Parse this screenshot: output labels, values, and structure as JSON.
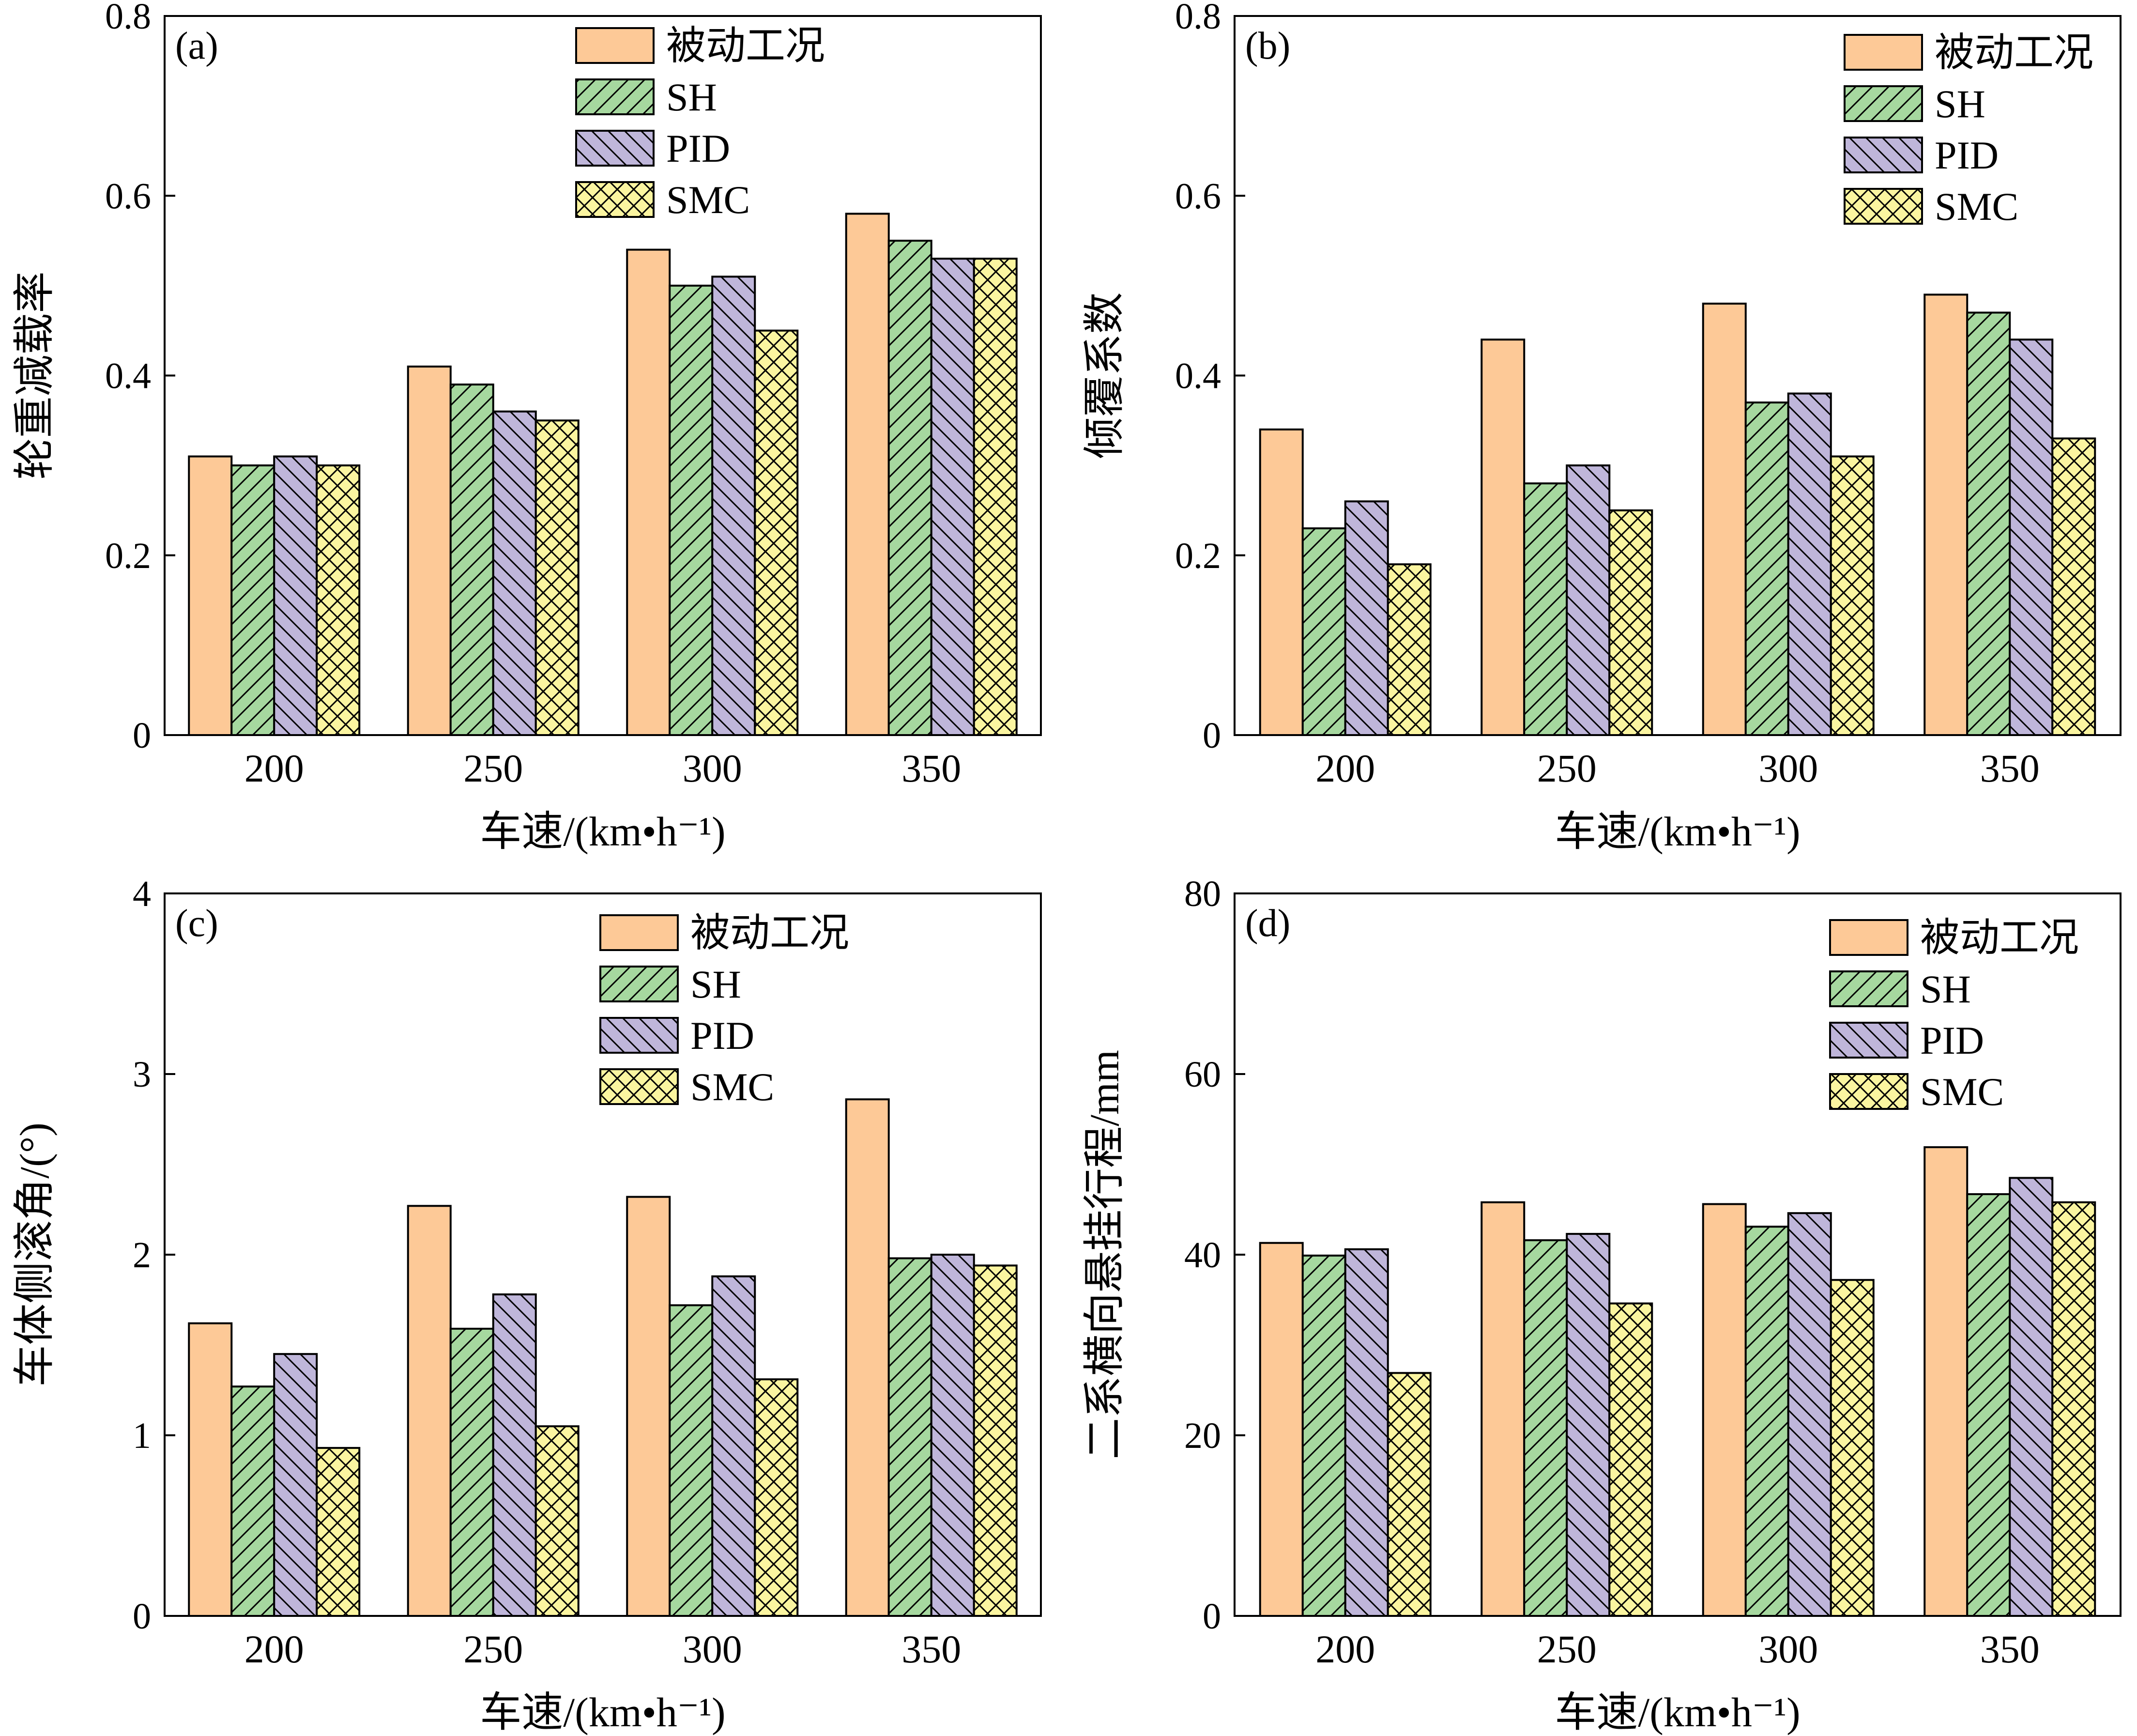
{
  "legend_labels": [
    "被动工况",
    "SH",
    "PID",
    "SMC"
  ],
  "colors": {
    "被动工况": "#fdc997",
    "SH": "#a6d89f",
    "PID": "#bfb6da",
    "SMC": "#fbf5a0",
    "stroke": "#000000"
  },
  "patterns": {
    "被动工况": "solid",
    "SH": "forward-diagonal-hatch",
    "PID": "backward-diagonal-hatch",
    "SMC": "crosshatch"
  },
  "chart_data": [
    {
      "type": "bar",
      "panel_label": "(a)",
      "categories": [
        "200",
        "250",
        "300",
        "350"
      ],
      "xlabel": "车速/(km•h⁻¹)",
      "ylabel": "轮重减载率",
      "ylim": [
        0,
        0.8
      ],
      "yticks": [
        0,
        0.2,
        0.4,
        0.6,
        0.8
      ],
      "ytick_labels": [
        "0",
        "0.2",
        "0.4",
        "0.6",
        "0.8"
      ],
      "legend_position": "top-right",
      "series": [
        {
          "name": "被动工况",
          "values": [
            0.31,
            0.41,
            0.54,
            0.58
          ]
        },
        {
          "name": "SH",
          "values": [
            0.3,
            0.39,
            0.5,
            0.55
          ]
        },
        {
          "name": "PID",
          "values": [
            0.31,
            0.36,
            0.51,
            0.53
          ]
        },
        {
          "name": "SMC",
          "values": [
            0.3,
            0.35,
            0.45,
            0.53
          ]
        }
      ]
    },
    {
      "type": "bar",
      "panel_label": "(b)",
      "categories": [
        "200",
        "250",
        "300",
        "350"
      ],
      "xlabel": "车速/(km•h⁻¹)",
      "ylabel": "倾覆系数",
      "ylim": [
        0,
        0.8
      ],
      "yticks": [
        0,
        0.2,
        0.4,
        0.6,
        0.8
      ],
      "ytick_labels": [
        "0",
        "0.2",
        "0.4",
        "0.6",
        "0.8"
      ],
      "legend_position": "top-right",
      "series": [
        {
          "name": "被动工况",
          "values": [
            0.34,
            0.44,
            0.48,
            0.49
          ]
        },
        {
          "name": "SH",
          "values": [
            0.23,
            0.28,
            0.37,
            0.47
          ]
        },
        {
          "name": "PID",
          "values": [
            0.26,
            0.3,
            0.38,
            0.44
          ]
        },
        {
          "name": "SMC",
          "values": [
            0.19,
            0.25,
            0.31,
            0.33
          ]
        }
      ]
    },
    {
      "type": "bar",
      "panel_label": "(c)",
      "categories": [
        "200",
        "250",
        "300",
        "350"
      ],
      "xlabel": "车速/(km•h⁻¹)",
      "ylabel": "车体侧滚角/(°)",
      "ylim": [
        0,
        4
      ],
      "yticks": [
        0,
        1,
        2,
        3,
        4
      ],
      "ytick_labels": [
        "0",
        "1",
        "2",
        "3",
        "4"
      ],
      "legend_position": "top-right",
      "series": [
        {
          "name": "被动工况",
          "values": [
            1.62,
            2.27,
            2.32,
            2.86
          ]
        },
        {
          "name": "SH",
          "values": [
            1.27,
            1.59,
            1.72,
            1.98
          ]
        },
        {
          "name": "PID",
          "values": [
            1.45,
            1.78,
            1.88,
            2.0
          ]
        },
        {
          "name": "SMC",
          "values": [
            0.93,
            1.05,
            1.31,
            1.94
          ]
        }
      ]
    },
    {
      "type": "bar",
      "panel_label": "(d)",
      "categories": [
        "200",
        "250",
        "300",
        "350"
      ],
      "xlabel": "车速/(km•h⁻¹)",
      "ylabel": "二系横向悬挂行程/mm",
      "ylim": [
        0,
        80
      ],
      "yticks": [
        0,
        20,
        40,
        60,
        80
      ],
      "ytick_labels": [
        "0",
        "20",
        "40",
        "60",
        "80"
      ],
      "legend_position": "top-right",
      "series": [
        {
          "name": "被动工况",
          "values": [
            41.3,
            45.8,
            45.6,
            51.9
          ]
        },
        {
          "name": "SH",
          "values": [
            39.9,
            41.6,
            43.1,
            46.7
          ]
        },
        {
          "name": "PID",
          "values": [
            40.6,
            42.3,
            44.6,
            48.5
          ]
        },
        {
          "name": "SMC",
          "values": [
            26.9,
            34.6,
            37.2,
            45.8
          ]
        }
      ]
    }
  ]
}
